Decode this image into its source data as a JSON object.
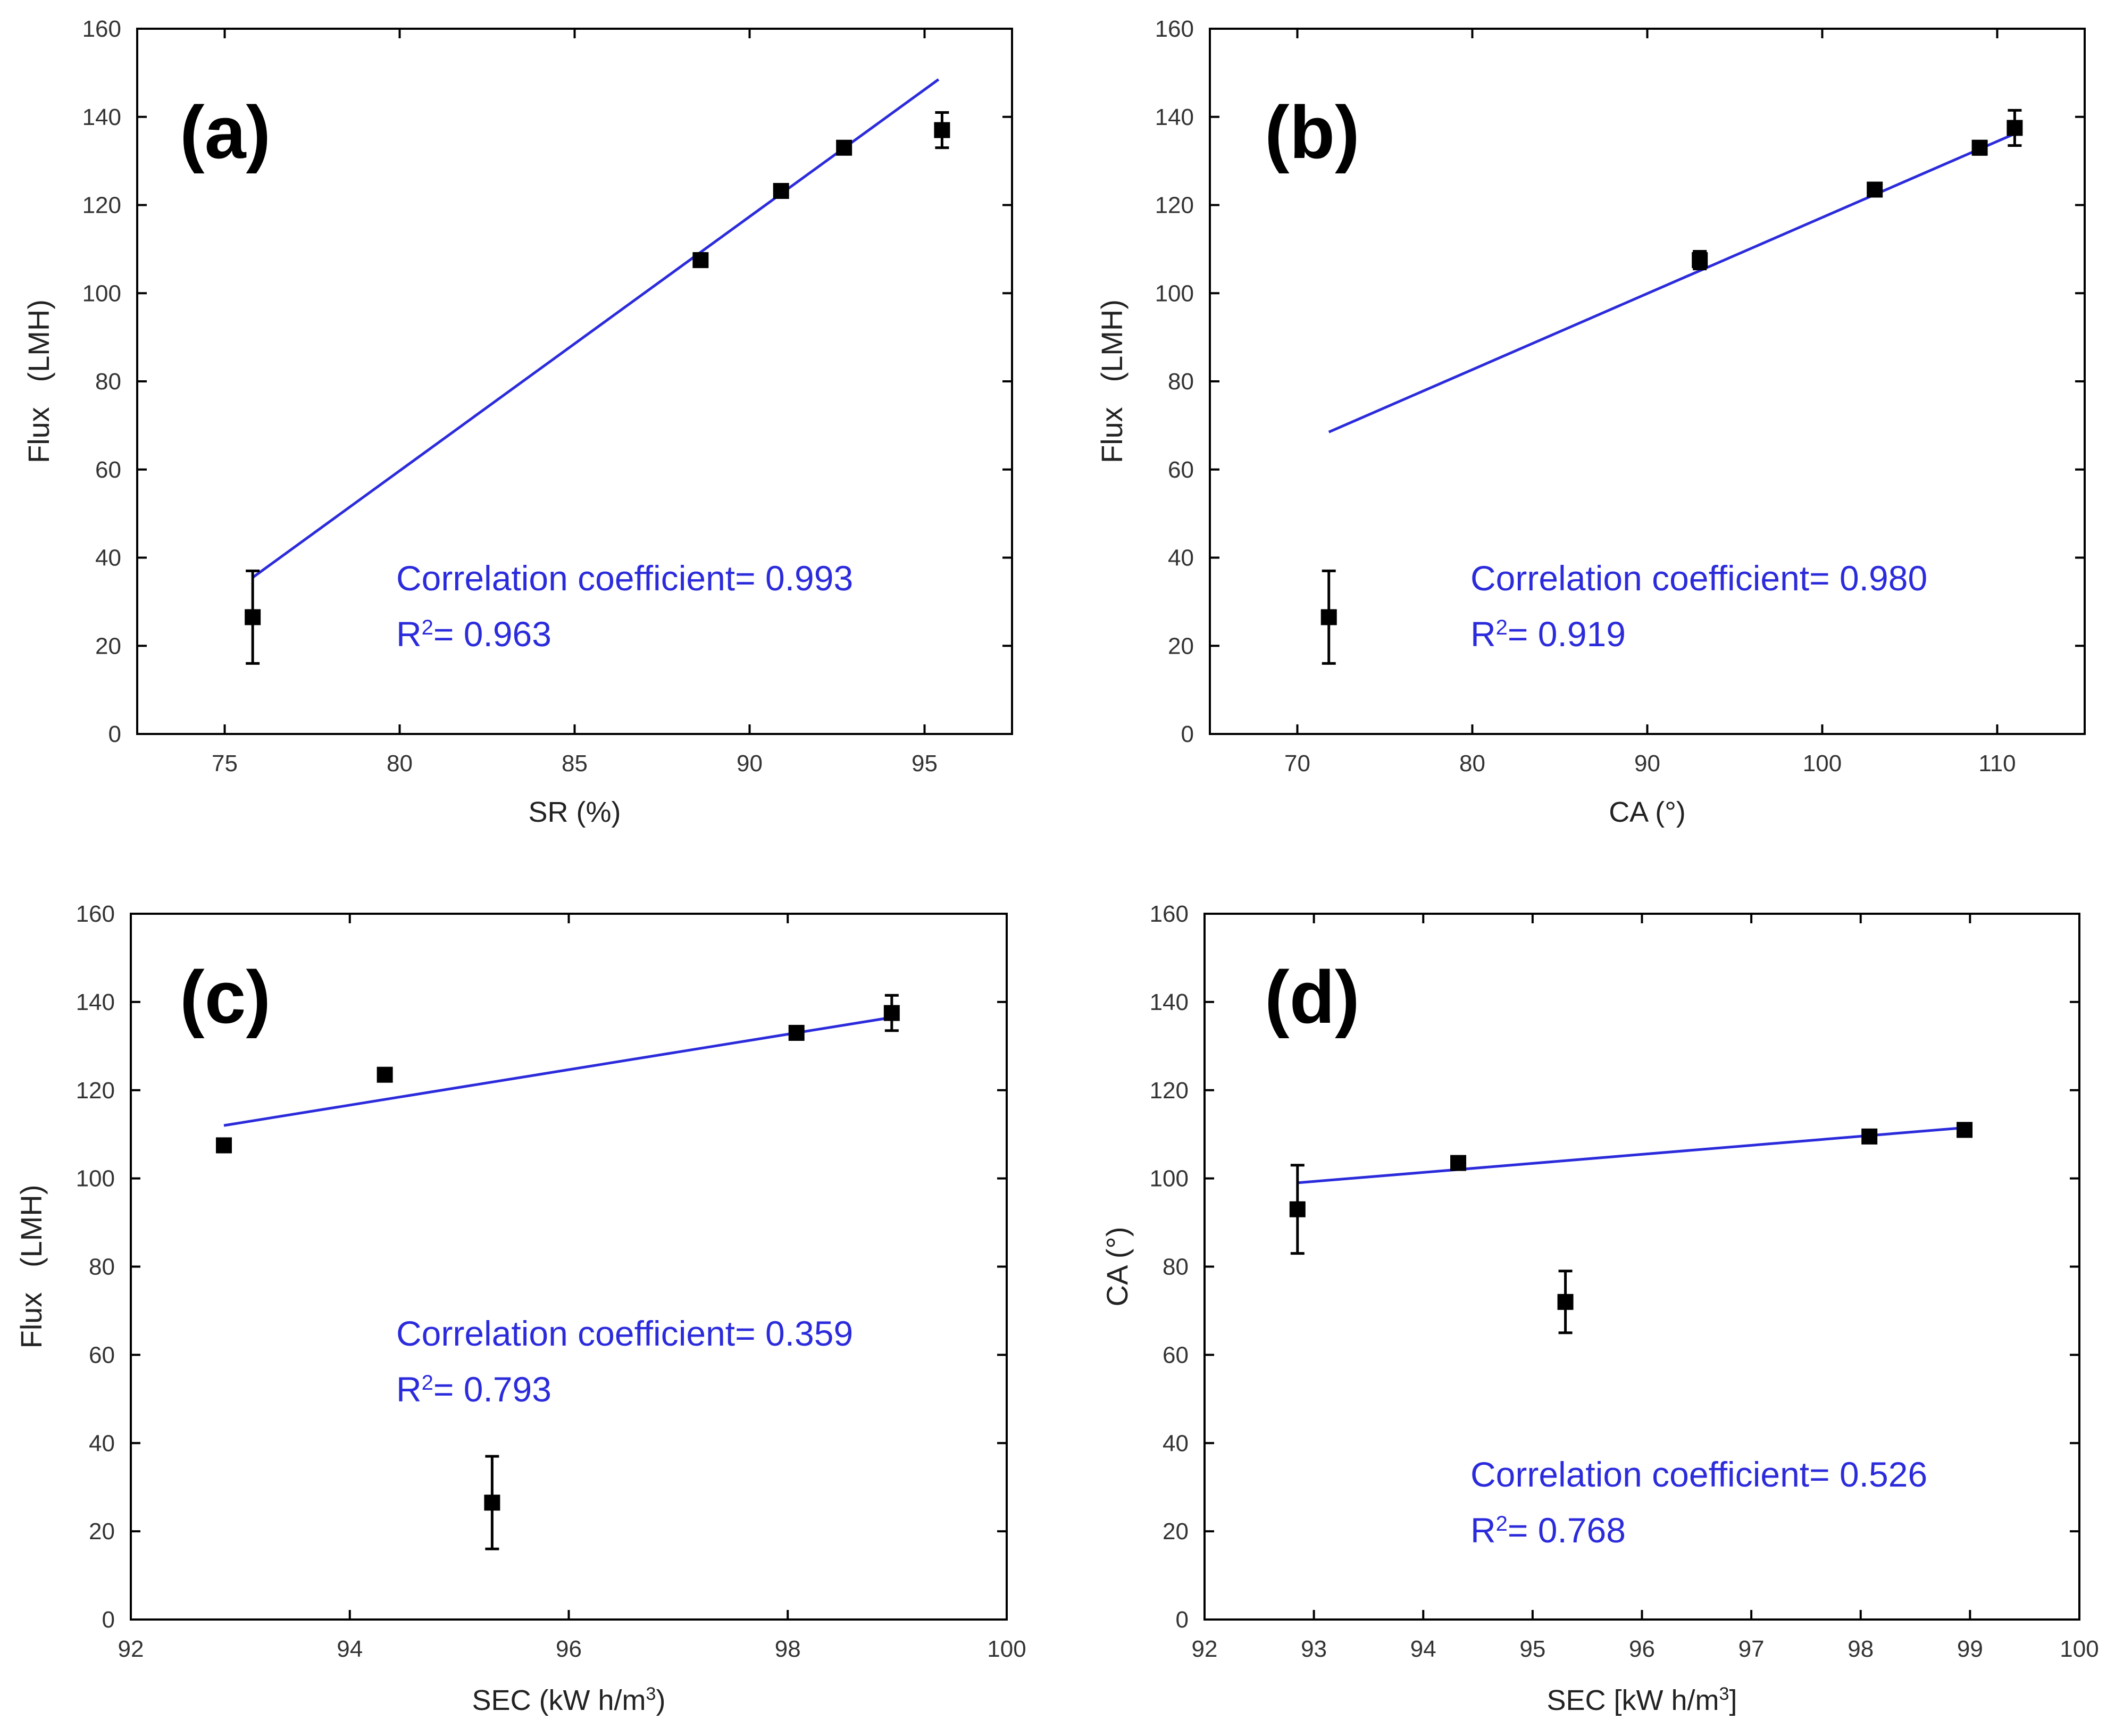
{
  "colors": {
    "fit_line": "#2b2bdc",
    "marker": "#000000",
    "axis": "#000000",
    "annotation_text": "#2b2bdc"
  },
  "chart_data": [
    {
      "type": "scatter",
      "panel_label": "(a)",
      "xlabel": "SR (%)",
      "ylabel": "Flux   (LMH)",
      "xlim": [
        72.5,
        97.5
      ],
      "ylim": [
        0,
        160
      ],
      "xticks": [
        75,
        80,
        85,
        90,
        95
      ],
      "yticks": [
        0,
        20,
        40,
        60,
        80,
        100,
        120,
        140,
        160
      ],
      "points": [
        {
          "x": 75.8,
          "y": 26.5,
          "err": 10.5
        },
        {
          "x": 88.6,
          "y": 107.5,
          "err": 1.5
        },
        {
          "x": 90.9,
          "y": 123.2,
          "err": 1.0
        },
        {
          "x": 92.7,
          "y": 133.0,
          "err": 1.0
        },
        {
          "x": 95.5,
          "y": 137.0,
          "err": 4.0
        }
      ],
      "fit": {
        "x": [
          75.8,
          95.4
        ],
        "y": [
          35.5,
          148.5
        ]
      },
      "annotation": {
        "line1": "Correlation coefficient= 0.993",
        "r2_prefix": "R",
        "r2_sup": "2",
        "r2_value": "= 0.963"
      },
      "legend_position": "bottom-right"
    },
    {
      "type": "scatter",
      "panel_label": "(b)",
      "xlabel": "CA (°)",
      "ylabel": "Flux   (LMH)",
      "xlim": [
        65,
        115
      ],
      "ylim": [
        0,
        160
      ],
      "xticks": [
        70,
        80,
        90,
        100,
        110
      ],
      "yticks": [
        0,
        20,
        40,
        60,
        80,
        100,
        120,
        140,
        160
      ],
      "points": [
        {
          "x": 71.8,
          "y": 26.5,
          "err": 10.5
        },
        {
          "x": 93.0,
          "y": 107.5,
          "err": 2.0
        },
        {
          "x": 103.0,
          "y": 123.5,
          "err": 1.0
        },
        {
          "x": 109.0,
          "y": 133.0,
          "err": 1.5
        },
        {
          "x": 111.0,
          "y": 137.5,
          "err": 4.0
        }
      ],
      "fit": {
        "x": [
          71.8,
          110.9
        ],
        "y": [
          68.5,
          136.0
        ]
      },
      "annotation": {
        "line1": "Correlation coefficient= 0.980",
        "r2_prefix": "R",
        "r2_sup": "2",
        "r2_value": "= 0.919"
      },
      "legend_position": "bottom-right"
    },
    {
      "type": "scatter",
      "panel_label": "(c)",
      "xlabel": "SEC (kW h/m",
      "xlabel_sup": "3",
      "xlabel_tail": ")",
      "ylabel": "Flux   (LMH)",
      "xlim": [
        92,
        100
      ],
      "ylim": [
        0,
        160
      ],
      "xticks": [
        92,
        94,
        96,
        98,
        100
      ],
      "yticks": [
        0,
        20,
        40,
        60,
        80,
        100,
        120,
        140,
        160
      ],
      "points": [
        {
          "x": 92.85,
          "y": 107.5,
          "err": 1.5
        },
        {
          "x": 94.32,
          "y": 123.5,
          "err": 1.0
        },
        {
          "x": 95.3,
          "y": 26.5,
          "err": 10.5
        },
        {
          "x": 98.08,
          "y": 133.0,
          "err": 1.5
        },
        {
          "x": 98.95,
          "y": 137.5,
          "err": 4.0
        }
      ],
      "fit": {
        "x": [
          92.85,
          98.95
        ],
        "y": [
          112.0,
          136.5
        ]
      },
      "annotation": {
        "line1": "Correlation coefficient= 0.359",
        "r2_prefix": "R",
        "r2_sup": "2",
        "r2_value": "= 0.793"
      },
      "legend_position": "center-right"
    },
    {
      "type": "scatter",
      "panel_label": "(d)",
      "xlabel": "SEC [kW h/m",
      "xlabel_sup": "3",
      "xlabel_tail": "]",
      "ylabel": "CA (°)",
      "xlim": [
        92,
        100
      ],
      "ylim": [
        0,
        160
      ],
      "xticks": [
        92,
        93,
        94,
        95,
        96,
        97,
        98,
        99,
        100
      ],
      "yticks": [
        0,
        20,
        40,
        60,
        80,
        100,
        120,
        140,
        160
      ],
      "points": [
        {
          "x": 92.85,
          "y": 93.0,
          "err": 10.0
        },
        {
          "x": 94.32,
          "y": 103.5,
          "err": 1.0
        },
        {
          "x": 95.3,
          "y": 72.0,
          "err": 7.0
        },
        {
          "x": 98.08,
          "y": 109.5,
          "err": 1.0
        },
        {
          "x": 98.95,
          "y": 111.0,
          "err": 1.0
        }
      ],
      "fit": {
        "x": [
          92.85,
          98.95
        ],
        "y": [
          99.0,
          111.5
        ]
      },
      "annotation": {
        "line1": "Correlation coefficient= 0.526",
        "r2_prefix": "R",
        "r2_sup": "2",
        "r2_value": "= 0.768"
      },
      "legend_position": "bottom-right"
    }
  ]
}
